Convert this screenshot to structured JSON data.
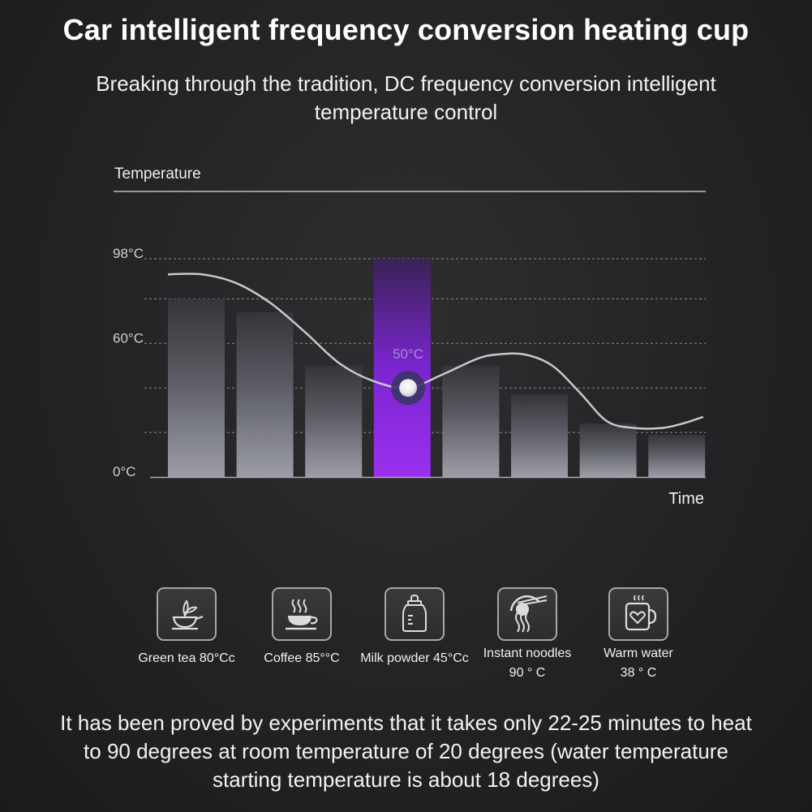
{
  "title": "Car intelligent frequency conversion heating cup",
  "subtitle": "Breaking through the tradition, DC frequency conversion intelligent temperature control",
  "chart_data": {
    "type": "bar",
    "ylabel": "Temperature",
    "xlabel": "Time",
    "ylim": [
      0,
      98
    ],
    "yticks": [
      {
        "value": 98,
        "label": "98°C"
      },
      {
        "value": 60,
        "label": "60°C"
      },
      {
        "value": 0,
        "label": "0°C"
      }
    ],
    "gridlines": [
      98,
      80,
      60,
      40,
      20
    ],
    "categories": [
      "",
      "",
      "",
      "",
      "",
      "",
      "",
      ""
    ],
    "values": [
      80,
      74,
      50,
      98,
      50,
      37,
      24,
      19
    ],
    "highlight_index": 3,
    "highlight_label": "50°C",
    "highlight_color": "#8a2be2",
    "bar_color": "#8f9098",
    "curve": {
      "x": [
        0.0,
        0.5,
        1.0,
        1.5,
        2.0,
        2.5,
        3.0,
        3.5,
        4.0,
        4.5,
        4.8,
        5.2,
        5.6,
        6.0,
        6.4,
        6.8,
        7.2,
        7.5,
        7.8
      ],
      "y": [
        91,
        91,
        87,
        78,
        65,
        51,
        43,
        40,
        46,
        53,
        55,
        55,
        50,
        38,
        25,
        22,
        22,
        24,
        27
      ]
    },
    "marker": {
      "x": 3.5,
      "y": 40
    }
  },
  "icons": [
    {
      "name": "green-tea-icon",
      "label": "Green tea 80°Cc"
    },
    {
      "name": "coffee-icon",
      "label": "Coffee 85°°C"
    },
    {
      "name": "milk-bottle-icon",
      "label": "Milk powder 45°Cc"
    },
    {
      "name": "noodles-icon",
      "label": "Instant noodles\n90 ° C"
    },
    {
      "name": "warm-water-icon",
      "label": "Warm water\n38 ° C"
    }
  ],
  "footer": "It has been proved by experiments that it takes only 22-25 minutes to heat to 90 degrees at room temperature of 20 degrees (water temperature starting temperature is about 18 degrees)"
}
